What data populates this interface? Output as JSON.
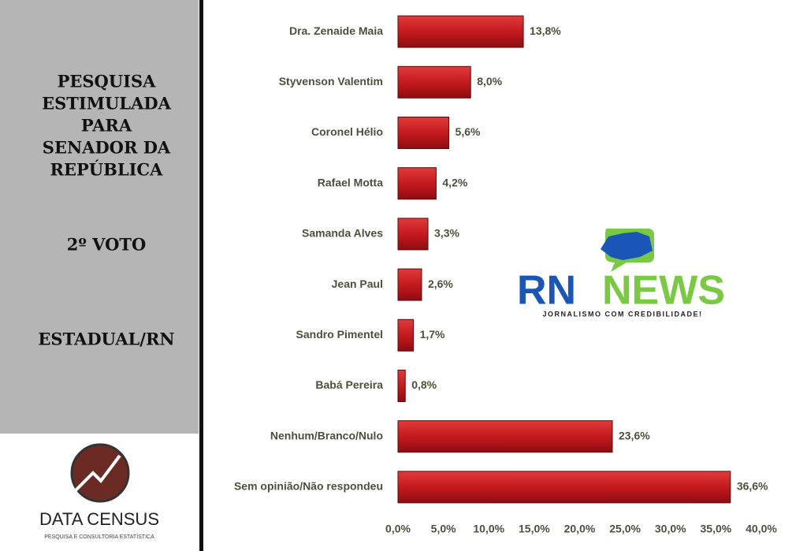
{
  "sidebar": {
    "title_lines": [
      "PESQUISA",
      "ESTIMULADA",
      "PARA",
      "SENADOR DA",
      "REPÚBLICA"
    ],
    "vote": "2º VOTO",
    "scope": "ESTADUAL/RN",
    "brand": "DATA CENSUS",
    "brand_tagline": "PESQUISA E CONSULTORIA ESTATÍSTICA"
  },
  "watermark": {
    "part1": "RN",
    "part2": "NEWS",
    "tagline": "JORNALISMO COM CREDIBILIDADE!"
  },
  "chart_data": {
    "type": "bar",
    "orientation": "horizontal",
    "color": "#c41a1f",
    "categories": [
      "Dra. Zenaide Maia",
      "Styvenson Valentim",
      "Coronel Hélio",
      "Rafael Motta",
      "Samanda Alves",
      "Jean Paul",
      "Sandro Pimentel",
      "Babá Pereira",
      "Nenhum/Branco/Nulo",
      "Sem opinião/Não respondeu"
    ],
    "values": [
      13.8,
      8.0,
      5.6,
      4.2,
      3.3,
      2.6,
      1.7,
      0.8,
      23.6,
      36.6
    ],
    "value_labels": [
      "13,8%",
      "8,0%",
      "5,6%",
      "4,2%",
      "3,3%",
      "2,6%",
      "1,7%",
      "0,8%",
      "23,6%",
      "36,6%"
    ],
    "xlim": [
      0,
      40
    ],
    "xticks": [
      {
        "value": 0,
        "label": "0,0%"
      },
      {
        "value": 5,
        "label": "5,0%"
      },
      {
        "value": 10,
        "label": "10,0%"
      },
      {
        "value": 15,
        "label": "15,0%"
      },
      {
        "value": 20,
        "label": "20,0%"
      },
      {
        "value": 25,
        "label": "25,0%"
      },
      {
        "value": 30,
        "label": "30,0%"
      },
      {
        "value": 35,
        "label": "35,0%"
      },
      {
        "value": 40,
        "label": "40,0%"
      }
    ],
    "grid": false
  }
}
